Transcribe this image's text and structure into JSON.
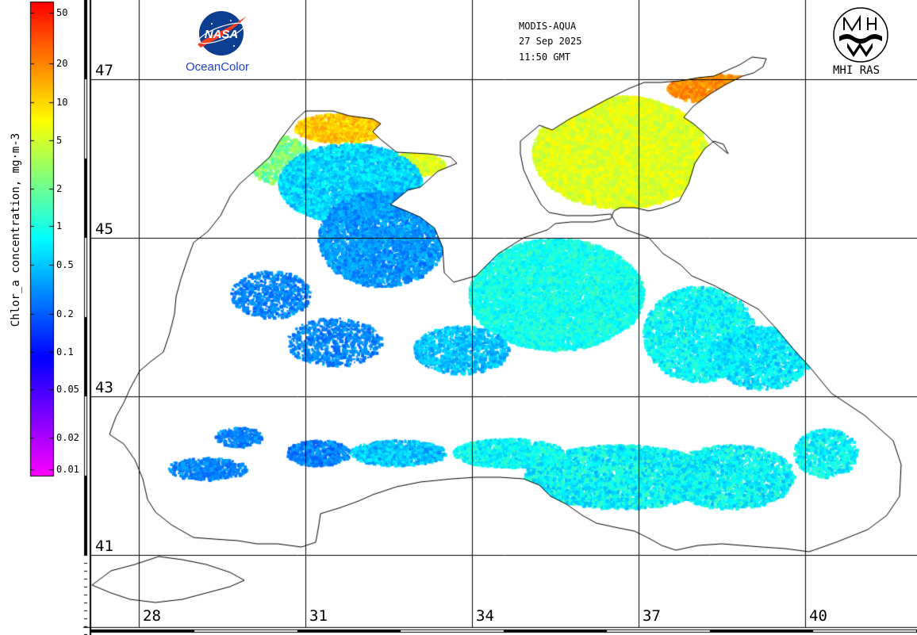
{
  "header": {
    "sensor": "MODIS-AQUA",
    "date": "27 Sep 2025",
    "time": "11:50 GMT"
  },
  "logos": {
    "nasa_wordmark": "NASA",
    "oceancolor_caption": "OceanColor",
    "mhi_caption": "MHI RAS"
  },
  "colorbar": {
    "axis_label": "Chlor_a concentration, mg·m-3",
    "scale": "log",
    "range": [
      0.01,
      60
    ],
    "ticks": [
      "50",
      "20",
      "10",
      "5",
      "2",
      "1",
      "0.5",
      "0.2",
      "0.1",
      "0.05",
      "0.02",
      "0.01"
    ],
    "colors": [
      "#ff00ff",
      "#0000ff",
      "#00ffff",
      "#ffff00",
      "#ff0000"
    ]
  },
  "map": {
    "latitude_labels": [
      "47",
      "45",
      "43",
      "41"
    ],
    "longitude_labels": [
      "28",
      "31",
      "34",
      "37",
      "40"
    ],
    "land_color": "#ffffff",
    "gridline_color": "#000000"
  }
}
